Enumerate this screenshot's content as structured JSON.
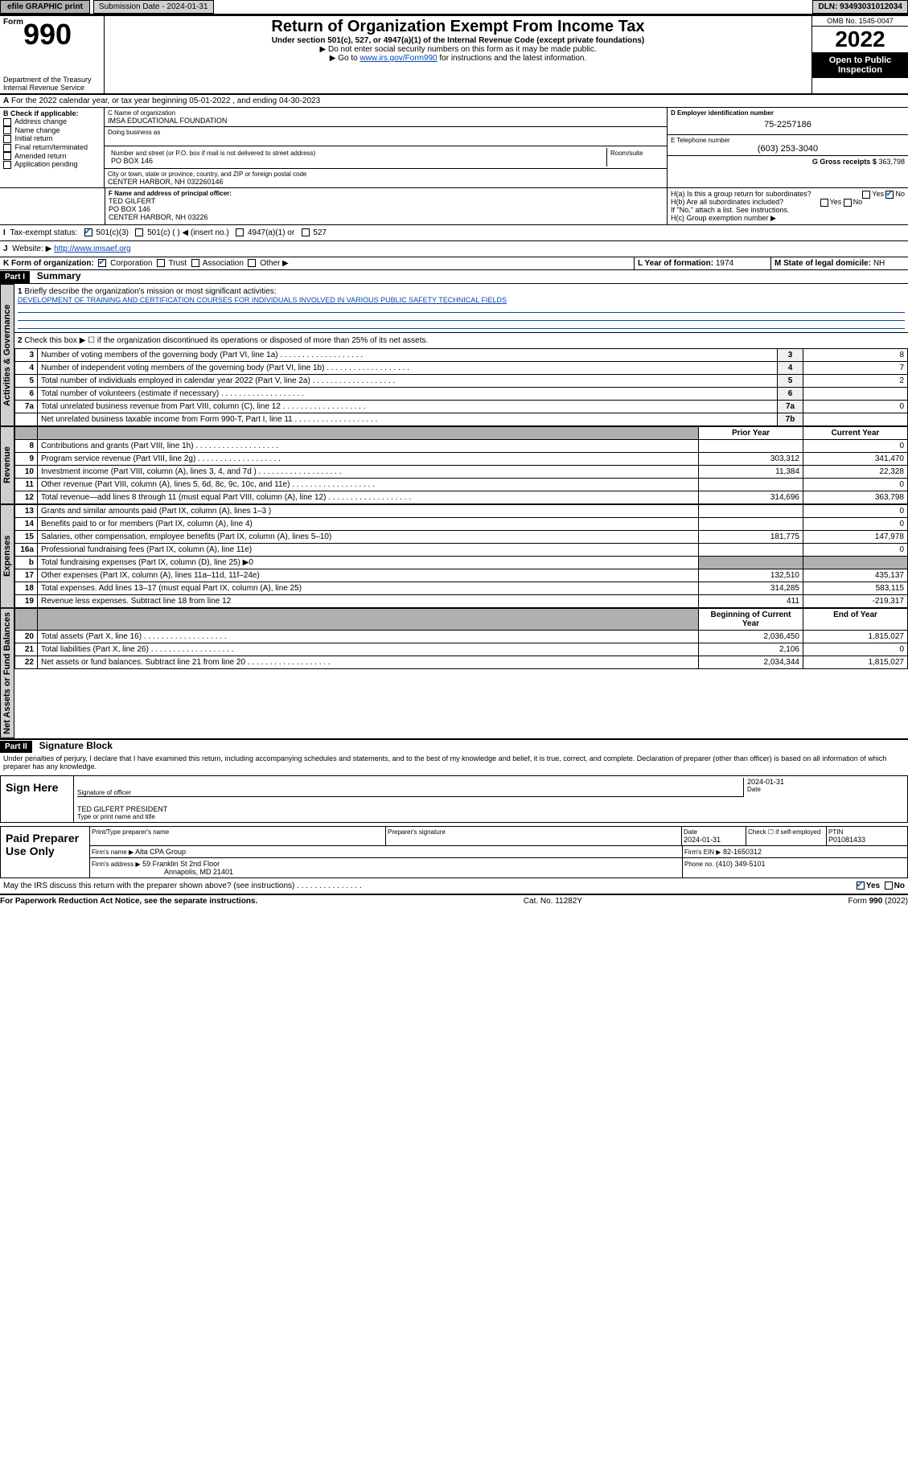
{
  "topbar": {
    "efile": "efile GRAPHIC print",
    "submission_label": "Submission Date - 2024-01-31",
    "dln_label": "DLN: 93493031012034"
  },
  "header": {
    "form_prefix": "Form",
    "form_number": "990",
    "dept": "Department of the Treasury",
    "irs": "Internal Revenue Service",
    "title": "Return of Organization Exempt From Income Tax",
    "sub1": "Under section 501(c), 527, or 4947(a)(1) of the Internal Revenue Code (except private foundations)",
    "sub2": "▶ Do not enter social security numbers on this form as it may be made public.",
    "sub3_pre": "▶ Go to ",
    "sub3_link": "www.irs.gov/Form990",
    "sub3_post": " for instructions and the latest information.",
    "omb": "OMB No. 1545-0047",
    "year": "2022",
    "open": "Open to Public Inspection"
  },
  "lineA": "For the 2022 calendar year, or tax year beginning 05-01-2022   , and ending 04-30-2023",
  "blockB": {
    "heading": "B Check if applicable:",
    "items": [
      "Address change",
      "Name change",
      "Initial return",
      "Final return/terminated",
      "Amended return",
      "Application pending"
    ]
  },
  "blockC": {
    "label": "C Name of organization",
    "name": "IMSA EDUCATIONAL FOUNDATION",
    "dba_label": "Doing business as",
    "addr_label": "Number and street (or P.O. box if mail is not delivered to street address)",
    "room_label": "Room/suite",
    "addr": "PO BOX 146",
    "city_label": "City or town, state or province, country, and ZIP or foreign postal code",
    "city": "CENTER HARBOR, NH  032260146"
  },
  "blockD": {
    "label": "D Employer identification number",
    "value": "75-2257186"
  },
  "blockE": {
    "label": "E Telephone number",
    "value": "(603) 253-3040"
  },
  "blockG": {
    "label": "G Gross receipts $",
    "value": "363,798"
  },
  "blockF": {
    "label": "F  Name and address of principal officer:",
    "name": "TED GILFERT",
    "addr1": "PO BOX 146",
    "addr2": "CENTER HARBOR, NH  03226"
  },
  "blockH": {
    "a": "H(a)  Is this a group return for subordinates?",
    "b": "H(b)  Are all subordinates included?",
    "note": "If \"No,\" attach a list. See instructions.",
    "c": "H(c)  Group exemption number ▶",
    "yes": "Yes",
    "no": "No"
  },
  "blockI": {
    "label": "Tax-exempt status:",
    "opts": [
      "501(c)(3)",
      "501(c) (  ) ◀ (insert no.)",
      "4947(a)(1) or",
      "527"
    ]
  },
  "blockJ": {
    "label": "Website: ▶",
    "value": "http://www.imsaef.org"
  },
  "blockK": {
    "label": "K Form of organization:",
    "opts": [
      "Corporation",
      "Trust",
      "Association",
      "Other ▶"
    ]
  },
  "blockL": {
    "label": "L Year of formation:",
    "value": "1974"
  },
  "blockM": {
    "label": "M State of legal domicile:",
    "value": "NH"
  },
  "part1": {
    "bar": "Part I",
    "title": "Summary"
  },
  "part2": {
    "bar": "Part II",
    "title": "Signature Block"
  },
  "tabs": {
    "gov": "Activities & Governance",
    "rev": "Revenue",
    "exp": "Expenses",
    "net": "Net Assets or Fund Balances"
  },
  "summary": {
    "l1_label": "Briefly describe the organization's mission or most significant activities:",
    "l1_text": "DEVELOPMENT OF TRAINING AND CERTIFICATION COURSES FOR INDIVIDUALS INVOLVED IN VARIOUS PUBLIC SAFETY TECHNICAL FIELDS",
    "l2": "Check this box ▶ ☐  if the organization discontinued its operations or disposed of more than 25% of its net assets.",
    "rows_gov": [
      {
        "n": "3",
        "t": "Number of voting members of the governing body (Part VI, line 1a)",
        "k": "3",
        "v": "8"
      },
      {
        "n": "4",
        "t": "Number of independent voting members of the governing body (Part VI, line 1b)",
        "k": "4",
        "v": "7"
      },
      {
        "n": "5",
        "t": "Total number of individuals employed in calendar year 2022 (Part V, line 2a)",
        "k": "5",
        "v": "2"
      },
      {
        "n": "6",
        "t": "Total number of volunteers (estimate if necessary)",
        "k": "6",
        "v": ""
      },
      {
        "n": "7a",
        "t": "Total unrelated business revenue from Part VIII, column (C), line 12",
        "k": "7a",
        "v": "0"
      },
      {
        "n": "",
        "t": "Net unrelated business taxable income from Form 990-T, Part I, line 11",
        "k": "7b",
        "v": ""
      }
    ],
    "hdr_prior": "Prior Year",
    "hdr_curr": "Current Year",
    "hdr_boy": "Beginning of Current Year",
    "hdr_eoy": "End of Year",
    "rows_rev": [
      {
        "n": "8",
        "t": "Contributions and grants (Part VIII, line 1h)",
        "p": "",
        "c": "0"
      },
      {
        "n": "9",
        "t": "Program service revenue (Part VIII, line 2g)",
        "p": "303,312",
        "c": "341,470"
      },
      {
        "n": "10",
        "t": "Investment income (Part VIII, column (A), lines 3, 4, and 7d )",
        "p": "11,384",
        "c": "22,328"
      },
      {
        "n": "11",
        "t": "Other revenue (Part VIII, column (A), lines 5, 6d, 8c, 9c, 10c, and 11e)",
        "p": "",
        "c": "0"
      },
      {
        "n": "12",
        "t": "Total revenue—add lines 8 through 11 (must equal Part VIII, column (A), line 12)",
        "p": "314,696",
        "c": "363,798"
      }
    ],
    "rows_exp": [
      {
        "n": "13",
        "t": "Grants and similar amounts paid (Part IX, column (A), lines 1–3 )",
        "p": "",
        "c": "0"
      },
      {
        "n": "14",
        "t": "Benefits paid to or for members (Part IX, column (A), line 4)",
        "p": "",
        "c": "0"
      },
      {
        "n": "15",
        "t": "Salaries, other compensation, employee benefits (Part IX, column (A), lines 5–10)",
        "p": "181,775",
        "c": "147,978"
      },
      {
        "n": "16a",
        "t": "Professional fundraising fees (Part IX, column (A), line 11e)",
        "p": "",
        "c": "0"
      },
      {
        "n": "b",
        "t": "Total fundraising expenses (Part IX, column (D), line 25) ▶0",
        "p": "shade",
        "c": "shade"
      },
      {
        "n": "17",
        "t": "Other expenses (Part IX, column (A), lines 11a–11d, 11f–24e)",
        "p": "132,510",
        "c": "435,137"
      },
      {
        "n": "18",
        "t": "Total expenses. Add lines 13–17 (must equal Part IX, column (A), line 25)",
        "p": "314,285",
        "c": "583,115"
      },
      {
        "n": "19",
        "t": "Revenue less expenses. Subtract line 18 from line 12",
        "p": "411",
        "c": "-219,317"
      }
    ],
    "rows_net": [
      {
        "n": "20",
        "t": "Total assets (Part X, line 16)",
        "p": "2,036,450",
        "c": "1,815,027"
      },
      {
        "n": "21",
        "t": "Total liabilities (Part X, line 26)",
        "p": "2,106",
        "c": "0"
      },
      {
        "n": "22",
        "t": "Net assets or fund balances. Subtract line 21 from line 20",
        "p": "2,034,344",
        "c": "1,815,027"
      }
    ]
  },
  "sigtext": "Under penalties of perjury, I declare that I have examined this return, including accompanying schedules and statements, and to the best of my knowledge and belief, it is true, correct, and complete. Declaration of preparer (other than officer) is based on all information of which preparer has any knowledge.",
  "sign": {
    "label": "Sign Here",
    "sig_officer": "Signature of officer",
    "date": "Date",
    "date_val": "2024-01-31",
    "name": "TED GILFERT PRESIDENT",
    "name_label": "Type or print name and title"
  },
  "preparer": {
    "label": "Paid Preparer Use Only",
    "h1": "Print/Type preparer's name",
    "h2": "Preparer's signature",
    "h3": "Date",
    "h3v": "2024-01-31",
    "h4": "Check ☐ if self-employed",
    "h5": "PTIN",
    "h5v": "P01081433",
    "firm_label": "Firm's name    ▶",
    "firm": "Alta CPA Group",
    "ein_label": "Firm's EIN ▶",
    "ein": "82-1650312",
    "addr_label": "Firm's address ▶",
    "addr1": "59 Franklin St 2nd Floor",
    "addr2": "Annapolis, MD  21401",
    "phone_label": "Phone no.",
    "phone": "(410) 349-5101"
  },
  "discuss": {
    "text": "May the IRS discuss this return with the preparer shown above? (see instructions)",
    "yes": "Yes",
    "no": "No"
  },
  "footer": {
    "left": "For Paperwork Reduction Act Notice, see the separate instructions.",
    "mid": "Cat. No. 11282Y",
    "right": "Form 990 (2022)"
  },
  "colors": {
    "link": "#0645ad",
    "grey": "#cfcfcf",
    "shade": "#b0b0b0",
    "black": "#000000"
  }
}
